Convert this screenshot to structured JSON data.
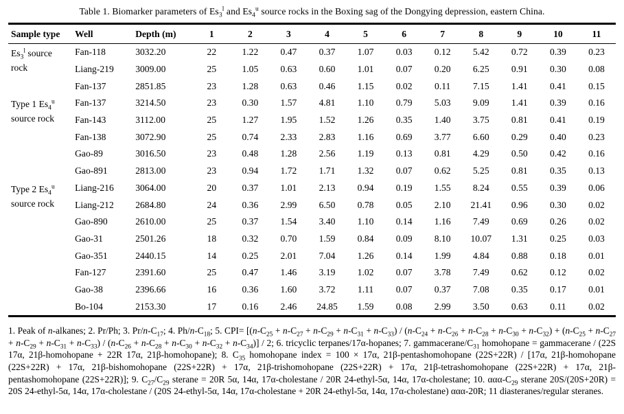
{
  "page": {
    "title_html": "Table 1. Biomarker parameters of Es<sub>3</sub><sup>l</sup> and Es<sub>4</sub><sup>u</sup> source rocks in the Boxing sag of the Dongying depression, eastern China."
  },
  "table": {
    "columns": [
      "Sample type",
      "Well",
      "Depth (m)",
      "1",
      "2",
      "3",
      "4",
      "5",
      "6",
      "7",
      "8",
      "9",
      "10",
      "11"
    ],
    "groups": [
      {
        "label_html": "Es<sub>3</sub><sup>l</sup> source rock",
        "rows": [
          [
            "Fan-118",
            "3032.20",
            "22",
            "1.22",
            "0.47",
            "0.37",
            "1.07",
            "0.03",
            "0.12",
            "5.42",
            "0.72",
            "0.39",
            "0.23"
          ],
          [
            "Liang-219",
            "3009.00",
            "25",
            "1.05",
            "0.63",
            "0.60",
            "1.01",
            "0.07",
            "0.20",
            "6.25",
            "0.91",
            "0.30",
            "0.08"
          ],
          [
            "Fan-137",
            "2851.85",
            "23",
            "1.28",
            "0.63",
            "0.46",
            "1.15",
            "0.02",
            "0.11",
            "7.15",
            "1.41",
            "0.41",
            "0.15"
          ]
        ]
      },
      {
        "label_html": "Type 1 Es<sub>4</sub><sup>u</sup> source rock",
        "rows": [
          [
            "Fan-137",
            "3214.50",
            "23",
            "0.30",
            "1.57",
            "4.81",
            "1.10",
            "0.79",
            "5.03",
            "9.09",
            "1.41",
            "0.39",
            "0.16"
          ],
          [
            "Fan-143",
            "3112.00",
            "25",
            "1.27",
            "1.95",
            "1.52",
            "1.26",
            "0.35",
            "1.40",
            "3.75",
            "0.81",
            "0.41",
            "0.19"
          ],
          [
            "Fan-138",
            "3072.90",
            "25",
            "0.74",
            "2.33",
            "2.83",
            "1.16",
            "0.69",
            "3.77",
            "6.60",
            "0.29",
            "0.40",
            "0.23"
          ],
          [
            "Gao-89",
            "3016.50",
            "23",
            "0.48",
            "1.28",
            "2.56",
            "1.19",
            "0.13",
            "0.81",
            "4.29",
            "0.50",
            "0.42",
            "0.16"
          ],
          [
            "Gao-891",
            "2813.00",
            "23",
            "0.94",
            "1.72",
            "1.71",
            "1.32",
            "0.07",
            "0.62",
            "5.25",
            "0.81",
            "0.35",
            "0.13"
          ]
        ]
      },
      {
        "label_html": "Type 2 Es<sub>4</sub><sup>u</sup> source rock",
        "rows": [
          [
            "Liang-216",
            "3064.00",
            "20",
            "0.37",
            "1.01",
            "2.13",
            "0.94",
            "0.19",
            "1.55",
            "8.24",
            "0.55",
            "0.39",
            "0.06"
          ],
          [
            "Liang-212",
            "2684.80",
            "24",
            "0.36",
            "2.99",
            "6.50",
            "0.78",
            "0.05",
            "2.10",
            "21.41",
            "0.96",
            "0.30",
            "0.02"
          ],
          [
            "Gao-890",
            "2610.00",
            "25",
            "0.37",
            "1.54",
            "3.40",
            "1.10",
            "0.14",
            "1.16",
            "7.49",
            "0.69",
            "0.26",
            "0.02"
          ],
          [
            "Gao-31",
            "2501.26",
            "18",
            "0.32",
            "0.70",
            "1.59",
            "0.84",
            "0.09",
            "8.10",
            "10.07",
            "1.31",
            "0.25",
            "0.03"
          ],
          [
            "Gao-351",
            "2440.15",
            "14",
            "0.25",
            "2.01",
            "7.04",
            "1.26",
            "0.14",
            "1.99",
            "4.84",
            "0.88",
            "0.18",
            "0.01"
          ],
          [
            "Fan-127",
            "2391.60",
            "25",
            "0.47",
            "1.46",
            "3.19",
            "1.02",
            "0.07",
            "3.78",
            "7.49",
            "0.62",
            "0.12",
            "0.02"
          ],
          [
            "Gao-38",
            "2396.66",
            "16",
            "0.36",
            "1.60",
            "3.72",
            "1.11",
            "0.07",
            "0.37",
            "7.08",
            "0.35",
            "0.17",
            "0.01"
          ],
          [
            "Bo-104",
            "2153.30",
            "17",
            "0.16",
            "2.46",
            "24.85",
            "1.59",
            "0.08",
            "2.99",
            "3.50",
            "0.63",
            "0.11",
            "0.02"
          ]
        ]
      }
    ]
  },
  "footnote_html": "1. Peak of <i>n</i>-alkanes; 2. Pr/Ph; 3. Pr/<i>n</i>-C<sub>17</sub>; 4. Ph/<i>n</i>-C<sub>18</sub>; 5. CPI= [(<i>n</i>-C<sub>25</sub> + <i>n</i>-C<sub>27</sub> + <i>n</i>-C<sub>29</sub> + <i>n</i>-C<sub>31</sub> + <i>n</i>-C<sub>33</sub>) / (<i>n</i>-C<sub>24</sub> + <i>n</i>-C<sub>26</sub> + <i>n</i>-C<sub>28</sub> + <i>n</i>-C<sub>30</sub> + <i>n</i>-C<sub>32</sub>) + (<i>n</i>-C<sub>25</sub> + <i>n</i>-C<sub>27</sub> + <i>n</i>-C<sub>29</sub> + <i>n</i>-C<sub>31</sub> + <i>n</i>-C<sub>33</sub>) / (<i>n</i>-C<sub>26</sub> + <i>n</i>-C<sub>28</sub> + <i>n</i>-C<sub>30</sub> + <i>n</i>-C<sub>32</sub> + <i>n</i>-C<sub>34</sub>)] / 2; 6. tricyclic terpanes/17α-hopanes; 7. gammacerane/C<sub>31</sub> homohopane = gammacerane / (22S 17α, 21β-homohopane + 22R 17α, 21β-homohopane); 8. C<sub>35</sub> homohopane index = 100 × 17α, 21β-pentashomohopane (22S+22R) / [17α, 21β-homohopane (22S+22R) + 17α, 21β-bishomohopane (22S+22R) + 17α, 21β-trishomohopane (22S+22R) + 17α, 21β-tetrashomohopane (22S+22R) + 17α, 21β-pentashomohopane (22S+22R)]; 9. C<sub>27</sub>/C<sub>29</sub> sterane = 20R 5α, 14α, 17α-cholestane / 20R 24-ethyl-5α, 14α, 17α-cholestane; 10. ααα-C<sub>29</sub> sterane 20S/(20S+20R) = 20S 24-ethyl-5α, 14α, 17α-cholestane / (20S 24-ethyl-5α, 14α, 17α-cholestane + 20R 24-ethyl-5α, 14α, 17α-cholestane) ααα-20R; 11 diasteranes/regular steranes."
}
